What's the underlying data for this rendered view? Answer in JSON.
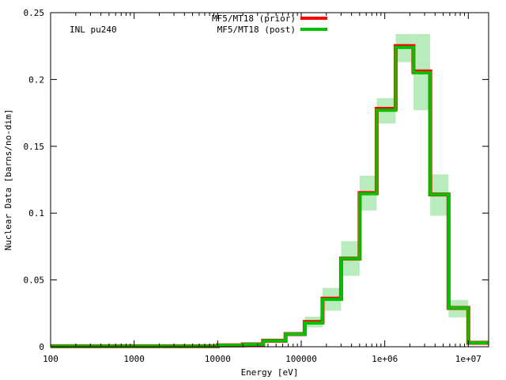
{
  "chart_data": {
    "type": "line",
    "annotation": "INL pu240",
    "xlabel": "Energy [eV]",
    "ylabel": "Nuclear Data [barns/no-dim]",
    "x_scale": "log",
    "xlim": [
      100,
      17500000
    ],
    "ylim": [
      0,
      0.25
    ],
    "x_ticks": [
      {
        "value": 100,
        "label": "100"
      },
      {
        "value": 1000,
        "label": "1000"
      },
      {
        "value": 10000,
        "label": "10000"
      },
      {
        "value": 100000,
        "label": "100000"
      },
      {
        "value": 1000000,
        "label": "1e+06"
      },
      {
        "value": 10000000,
        "label": "1e+07"
      }
    ],
    "y_ticks": [
      {
        "value": 0,
        "label": "0"
      },
      {
        "value": 0.05,
        "label": "0.05"
      },
      {
        "value": 0.1,
        "label": "0.1"
      },
      {
        "value": 0.15,
        "label": "0.15"
      },
      {
        "value": 0.2,
        "label": "0.2"
      },
      {
        "value": 0.25,
        "label": "0.25"
      }
    ],
    "grid": false,
    "legend_position": "top-center",
    "bin_edges": [
      100,
      10000,
      20000,
      35000,
      65000,
      110000,
      180000,
      300000,
      500000,
      800000,
      1350000,
      2200000,
      3500000,
      5800000,
      10000000,
      17500000
    ],
    "series": [
      {
        "name": "MF5/MT18 (prior)",
        "color": "#ff0000",
        "values": [
          0.0004,
          0.001,
          0.0018,
          0.0045,
          0.0095,
          0.0185,
          0.036,
          0.066,
          0.115,
          0.178,
          0.225,
          0.206,
          0.114,
          0.029,
          0.003
        ]
      },
      {
        "name": "MF5/MT18 (post)",
        "color": "#00c000",
        "values": [
          0.0004,
          0.001,
          0.0018,
          0.0045,
          0.0095,
          0.0178,
          0.0355,
          0.066,
          0.1145,
          0.177,
          0.224,
          0.205,
          0.114,
          0.029,
          0.003
        ],
        "band_low": [
          0.0003,
          0.0008,
          0.0015,
          0.004,
          0.008,
          0.0145,
          0.027,
          0.053,
          0.102,
          0.167,
          0.213,
          0.177,
          0.098,
          0.022,
          0.0022
        ],
        "band_high": [
          0.0005,
          0.0012,
          0.0021,
          0.005,
          0.0105,
          0.0225,
          0.044,
          0.079,
          0.128,
          0.186,
          0.234,
          0.234,
          0.129,
          0.035,
          0.0038
        ],
        "band_color": "#b8ecbc"
      }
    ]
  }
}
